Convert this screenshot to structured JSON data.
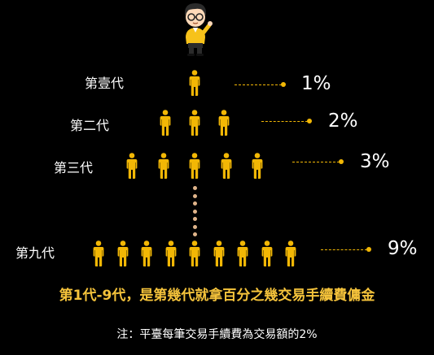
{
  "colors": {
    "background": "#000000",
    "figure": "#f2b705",
    "leader": "#f2b705",
    "vertical_dots": "#e0b48a",
    "headline": "#f5c33b",
    "text": "#ffffff"
  },
  "top_figure_icon": "cartoon-presenter-icon",
  "member_icon": "person-icon",
  "generations": [
    {
      "label": "第壹代",
      "percent": "1%",
      "count": 1
    },
    {
      "label": "第二代",
      "percent": "2%",
      "count": 3
    },
    {
      "label": "第三代",
      "percent": "3%",
      "count": 5
    },
    {
      "label": "第九代",
      "percent": "9%",
      "count": 9
    }
  ],
  "ellipsis_icon": "vertical-ellipsis-dots",
  "headline": "第1代-9代，是第幾代就拿百分之幾交易手續費傭金",
  "footnote": "注：平臺每筆交易手續費為交易額的2%"
}
